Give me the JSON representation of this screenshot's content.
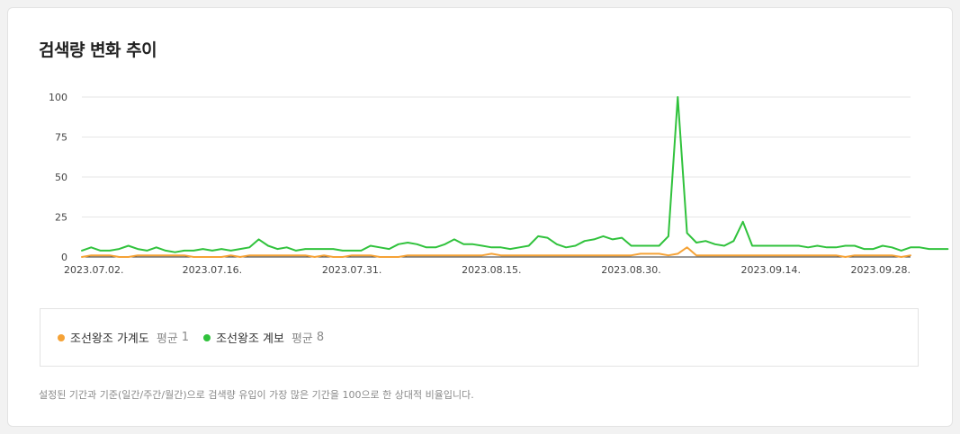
{
  "panel": {
    "title": "검색량 변화 추이",
    "footnote": "설정된 기간과 기준(일간/주간/월간)으로 검색량 유입이 가장 많은 기간을 100으로 한 상대적 비율입니다."
  },
  "legend": {
    "items": [
      {
        "name": "조선왕조 가계도",
        "avg_label": "평균",
        "avg_value": "1",
        "color": "#f5a236"
      },
      {
        "name": "조선왕조 계보",
        "avg_label": "평균",
        "avg_value": "8",
        "color": "#30c23c"
      }
    ]
  },
  "chart_data": {
    "type": "line",
    "title": "검색량 변화 추이",
    "xlabel": "",
    "ylabel": "",
    "ylim": [
      0,
      100
    ],
    "y_ticks": [
      0,
      25,
      50,
      75,
      100
    ],
    "x_range": [
      "2023-07-02",
      "2023-09-29"
    ],
    "x_ticks": [
      {
        "date": "2023-07-02",
        "label": "2023.07.02."
      },
      {
        "date": "2023-07-16",
        "label": "2023.07.16."
      },
      {
        "date": "2023-07-31",
        "label": "2023.07.31."
      },
      {
        "date": "2023-08-15",
        "label": "2023.08.15."
      },
      {
        "date": "2023-08-30",
        "label": "2023.08.30."
      },
      {
        "date": "2023-09-14",
        "label": "2023.09.14."
      },
      {
        "date": "2023-09-28",
        "label": "2023.09.28."
      }
    ],
    "grid": true,
    "series": [
      {
        "name": "조선왕조 가계도",
        "color": "#f5a236",
        "points": [
          [
            "2023-07-02",
            0
          ],
          [
            "2023-07-03",
            1
          ],
          [
            "2023-07-04",
            1
          ],
          [
            "2023-07-05",
            1
          ],
          [
            "2023-07-06",
            0
          ],
          [
            "2023-07-07",
            0
          ],
          [
            "2023-07-08",
            1
          ],
          [
            "2023-07-09",
            1
          ],
          [
            "2023-07-10",
            1
          ],
          [
            "2023-07-11",
            1
          ],
          [
            "2023-07-12",
            1
          ],
          [
            "2023-07-13",
            1
          ],
          [
            "2023-07-14",
            0
          ],
          [
            "2023-07-15",
            0
          ],
          [
            "2023-07-16",
            0
          ],
          [
            "2023-07-17",
            0
          ],
          [
            "2023-07-18",
            1
          ],
          [
            "2023-07-19",
            0
          ],
          [
            "2023-07-20",
            1
          ],
          [
            "2023-07-21",
            1
          ],
          [
            "2023-07-22",
            1
          ],
          [
            "2023-07-23",
            1
          ],
          [
            "2023-07-24",
            1
          ],
          [
            "2023-07-25",
            1
          ],
          [
            "2023-07-26",
            1
          ],
          [
            "2023-07-27",
            0
          ],
          [
            "2023-07-28",
            1
          ],
          [
            "2023-07-29",
            0
          ],
          [
            "2023-07-30",
            0
          ],
          [
            "2023-07-31",
            1
          ],
          [
            "2023-08-01",
            1
          ],
          [
            "2023-08-02",
            1
          ],
          [
            "2023-08-03",
            0
          ],
          [
            "2023-08-04",
            0
          ],
          [
            "2023-08-05",
            0
          ],
          [
            "2023-08-06",
            1
          ],
          [
            "2023-08-07",
            1
          ],
          [
            "2023-08-08",
            1
          ],
          [
            "2023-08-09",
            1
          ],
          [
            "2023-08-10",
            1
          ],
          [
            "2023-08-11",
            1
          ],
          [
            "2023-08-12",
            1
          ],
          [
            "2023-08-13",
            1
          ],
          [
            "2023-08-14",
            1
          ],
          [
            "2023-08-15",
            2
          ],
          [
            "2023-08-16",
            1
          ],
          [
            "2023-08-17",
            1
          ],
          [
            "2023-08-18",
            1
          ],
          [
            "2023-08-19",
            1
          ],
          [
            "2023-08-20",
            1
          ],
          [
            "2023-08-21",
            1
          ],
          [
            "2023-08-22",
            1
          ],
          [
            "2023-08-23",
            1
          ],
          [
            "2023-08-24",
            1
          ],
          [
            "2023-08-25",
            1
          ],
          [
            "2023-08-26",
            1
          ],
          [
            "2023-08-27",
            1
          ],
          [
            "2023-08-28",
            1
          ],
          [
            "2023-08-29",
            1
          ],
          [
            "2023-08-30",
            1
          ],
          [
            "2023-08-31",
            2
          ],
          [
            "2023-09-01",
            2
          ],
          [
            "2023-09-02",
            2
          ],
          [
            "2023-09-03",
            1
          ],
          [
            "2023-09-04",
            2
          ],
          [
            "2023-09-05",
            6
          ],
          [
            "2023-09-06",
            1
          ],
          [
            "2023-09-07",
            1
          ],
          [
            "2023-09-08",
            1
          ],
          [
            "2023-09-09",
            1
          ],
          [
            "2023-09-10",
            1
          ],
          [
            "2023-09-11",
            1
          ],
          [
            "2023-09-12",
            1
          ],
          [
            "2023-09-13",
            1
          ],
          [
            "2023-09-14",
            1
          ],
          [
            "2023-09-15",
            1
          ],
          [
            "2023-09-16",
            1
          ],
          [
            "2023-09-17",
            1
          ],
          [
            "2023-09-18",
            1
          ],
          [
            "2023-09-19",
            1
          ],
          [
            "2023-09-20",
            1
          ],
          [
            "2023-09-21",
            1
          ],
          [
            "2023-09-22",
            0
          ],
          [
            "2023-09-23",
            1
          ],
          [
            "2023-09-24",
            1
          ],
          [
            "2023-09-25",
            1
          ],
          [
            "2023-09-26",
            1
          ],
          [
            "2023-09-27",
            1
          ],
          [
            "2023-09-28",
            0
          ],
          [
            "2023-09-29",
            1
          ]
        ]
      },
      {
        "name": "조선왕조 계보",
        "color": "#30c23c",
        "points": [
          [
            "2023-07-02",
            4
          ],
          [
            "2023-07-03",
            6
          ],
          [
            "2023-07-04",
            4
          ],
          [
            "2023-07-05",
            4
          ],
          [
            "2023-07-06",
            5
          ],
          [
            "2023-07-07",
            7
          ],
          [
            "2023-07-08",
            5
          ],
          [
            "2023-07-09",
            4
          ],
          [
            "2023-07-10",
            6
          ],
          [
            "2023-07-11",
            4
          ],
          [
            "2023-07-12",
            3
          ],
          [
            "2023-07-13",
            4
          ],
          [
            "2023-07-14",
            4
          ],
          [
            "2023-07-15",
            5
          ],
          [
            "2023-07-16",
            4
          ],
          [
            "2023-07-17",
            5
          ],
          [
            "2023-07-18",
            4
          ],
          [
            "2023-07-19",
            5
          ],
          [
            "2023-07-20",
            6
          ],
          [
            "2023-07-21",
            11
          ],
          [
            "2023-07-22",
            7
          ],
          [
            "2023-07-23",
            5
          ],
          [
            "2023-07-24",
            6
          ],
          [
            "2023-07-25",
            4
          ],
          [
            "2023-07-26",
            5
          ],
          [
            "2023-07-27",
            5
          ],
          [
            "2023-07-28",
            5
          ],
          [
            "2023-07-29",
            5
          ],
          [
            "2023-07-30",
            4
          ],
          [
            "2023-07-31",
            4
          ],
          [
            "2023-08-01",
            4
          ],
          [
            "2023-08-02",
            7
          ],
          [
            "2023-08-03",
            6
          ],
          [
            "2023-08-04",
            5
          ],
          [
            "2023-08-05",
            8
          ],
          [
            "2023-08-06",
            9
          ],
          [
            "2023-08-07",
            8
          ],
          [
            "2023-08-08",
            6
          ],
          [
            "2023-08-09",
            6
          ],
          [
            "2023-08-10",
            8
          ],
          [
            "2023-08-11",
            11
          ],
          [
            "2023-08-12",
            8
          ],
          [
            "2023-08-13",
            8
          ],
          [
            "2023-08-14",
            7
          ],
          [
            "2023-08-15",
            6
          ],
          [
            "2023-08-16",
            6
          ],
          [
            "2023-08-17",
            5
          ],
          [
            "2023-08-18",
            6
          ],
          [
            "2023-08-19",
            7
          ],
          [
            "2023-08-20",
            13
          ],
          [
            "2023-08-21",
            12
          ],
          [
            "2023-08-22",
            8
          ],
          [
            "2023-08-23",
            6
          ],
          [
            "2023-08-24",
            7
          ],
          [
            "2023-08-25",
            10
          ],
          [
            "2023-08-26",
            11
          ],
          [
            "2023-08-27",
            13
          ],
          [
            "2023-08-28",
            11
          ],
          [
            "2023-08-29",
            12
          ],
          [
            "2023-08-30",
            7
          ],
          [
            "2023-08-31",
            7
          ],
          [
            "2023-09-01",
            7
          ],
          [
            "2023-09-02",
            7
          ],
          [
            "2023-09-03",
            13
          ],
          [
            "2023-09-04",
            100
          ],
          [
            "2023-09-05",
            15
          ],
          [
            "2023-09-06",
            9
          ],
          [
            "2023-09-07",
            10
          ],
          [
            "2023-09-08",
            8
          ],
          [
            "2023-09-09",
            7
          ],
          [
            "2023-09-10",
            10
          ],
          [
            "2023-09-11",
            22
          ],
          [
            "2023-09-12",
            7
          ],
          [
            "2023-09-13",
            7
          ],
          [
            "2023-09-14",
            7
          ],
          [
            "2023-09-15",
            7
          ],
          [
            "2023-09-16",
            7
          ],
          [
            "2023-09-17",
            7
          ],
          [
            "2023-09-18",
            6
          ],
          [
            "2023-09-19",
            7
          ],
          [
            "2023-09-20",
            6
          ],
          [
            "2023-09-21",
            6
          ],
          [
            "2023-09-22",
            7
          ],
          [
            "2023-09-23",
            7
          ],
          [
            "2023-09-24",
            5
          ],
          [
            "2023-09-25",
            5
          ],
          [
            "2023-09-26",
            7
          ],
          [
            "2023-09-27",
            6
          ],
          [
            "2023-09-28",
            4
          ],
          [
            "2023-09-29",
            6
          ],
          [
            "2023-09-30",
            6
          ],
          [
            "2023-10-01",
            5
          ],
          [
            "2023-10-02",
            5
          ],
          [
            "2023-10-03",
            5
          ]
        ]
      }
    ]
  }
}
